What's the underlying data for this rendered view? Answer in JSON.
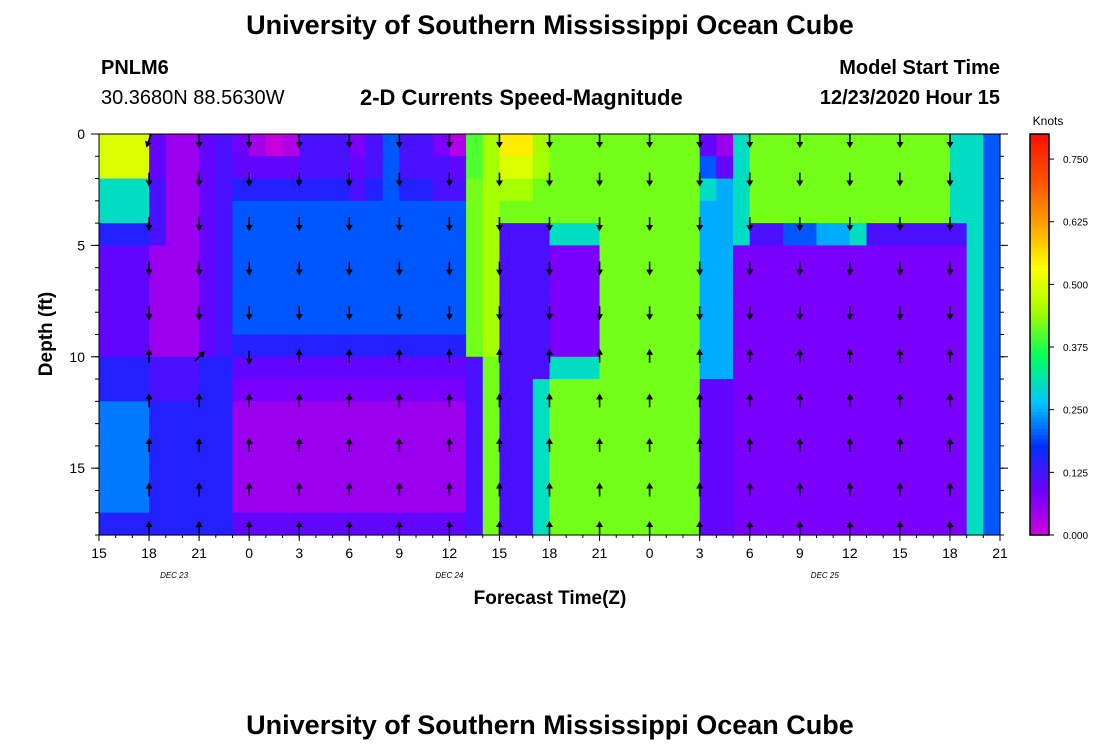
{
  "page": {
    "title_top": "University of Southern Mississippi Ocean Cube",
    "title_bottom": "University of Southern Mississippi Ocean Cube",
    "station_id": "PNLM6",
    "coordinates": "30.3680N 88.5630W",
    "model_start_label": "Model Start Time",
    "model_start_value": "12/23/2020 Hour 15"
  },
  "chart_data": {
    "type": "heatmap",
    "title": "2-D Currents Speed-Magnitude",
    "xlabel": "Forecast Time(Z)",
    "ylabel": "Depth (ft)",
    "x_tick_labels": [
      "15",
      "18",
      "21",
      "0",
      "3",
      "6",
      "9",
      "12",
      "15",
      "18",
      "21",
      "0",
      "3",
      "6",
      "9",
      "12",
      "15",
      "18",
      "21"
    ],
    "x_hours": [
      0,
      54
    ],
    "date_labels": [
      {
        "text": "DEC 23",
        "hour": 4.5
      },
      {
        "text": "DEC 24",
        "hour": 21
      },
      {
        "text": "DEC 25",
        "hour": 43.5
      }
    ],
    "y_ticks": [
      "0",
      "5",
      "10",
      "15"
    ],
    "ylim": [
      0,
      18
    ],
    "y_inverted": true,
    "colorbar": {
      "unit_label": "Knots",
      "range": [
        0,
        0.8
      ],
      "tick_labels": [
        "0.000",
        "0.125",
        "0.250",
        "0.375",
        "0.500",
        "0.625",
        "0.750"
      ],
      "colors": [
        "#d000d8",
        "#7000ff",
        "#0030ff",
        "#00c8ff",
        "#00ff60",
        "#a0ff00",
        "#ffff00",
        "#ffa000",
        "#ff5000",
        "#ff1000"
      ]
    },
    "column_hours": [
      0,
      1,
      2,
      3,
      4,
      5,
      6,
      7,
      8,
      9,
      10,
      11,
      12,
      13,
      14,
      15,
      16,
      17,
      18,
      19,
      20,
      21,
      22,
      23,
      24,
      25,
      26,
      27,
      28,
      29,
      30,
      31,
      32,
      33,
      34,
      35,
      36,
      37,
      38,
      39,
      40,
      41,
      42,
      43,
      44,
      45,
      46,
      47,
      48,
      49,
      50,
      51,
      52,
      53
    ],
    "row_depths_ft": [
      0,
      1,
      2,
      3,
      4,
      5,
      6,
      7,
      8,
      9,
      10,
      11,
      12,
      13,
      14,
      15,
      16,
      17
    ],
    "speed_knots": [
      [
        0.5,
        0.5,
        0.5,
        0.1,
        0.05,
        0.05,
        0.1,
        0.12,
        0.09,
        0.04,
        0.01,
        0.03,
        0.12,
        0.12,
        0.12,
        0.08,
        0.12,
        0.2,
        0.12,
        0.12,
        0.08,
        0.03,
        0.4,
        0.45,
        0.55,
        0.55,
        0.45,
        0.42,
        0.42,
        0.42,
        0.42,
        0.42,
        0.42,
        0.42,
        0.42,
        0.42,
        0.1,
        0.05,
        0.3,
        0.42,
        0.42,
        0.42,
        0.42,
        0.42,
        0.42,
        0.42,
        0.42,
        0.42,
        0.42,
        0.42,
        0.42,
        0.3,
        0.3,
        0.2
      ],
      [
        0.5,
        0.5,
        0.5,
        0.1,
        0.05,
        0.05,
        0.1,
        0.12,
        0.1,
        0.1,
        0.1,
        0.1,
        0.12,
        0.12,
        0.12,
        0.1,
        0.12,
        0.2,
        0.12,
        0.12,
        0.12,
        0.1,
        0.4,
        0.45,
        0.5,
        0.5,
        0.45,
        0.42,
        0.42,
        0.42,
        0.42,
        0.42,
        0.42,
        0.42,
        0.42,
        0.42,
        0.2,
        0.1,
        0.3,
        0.42,
        0.42,
        0.42,
        0.42,
        0.42,
        0.42,
        0.42,
        0.42,
        0.42,
        0.42,
        0.42,
        0.42,
        0.3,
        0.3,
        0.2
      ],
      [
        0.3,
        0.3,
        0.3,
        0.12,
        0.05,
        0.05,
        0.1,
        0.12,
        0.15,
        0.15,
        0.15,
        0.15,
        0.15,
        0.15,
        0.15,
        0.12,
        0.15,
        0.2,
        0.15,
        0.15,
        0.12,
        0.12,
        0.42,
        0.45,
        0.45,
        0.45,
        0.42,
        0.42,
        0.42,
        0.42,
        0.42,
        0.42,
        0.42,
        0.42,
        0.42,
        0.42,
        0.3,
        0.25,
        0.3,
        0.42,
        0.42,
        0.42,
        0.42,
        0.42,
        0.42,
        0.42,
        0.42,
        0.42,
        0.42,
        0.42,
        0.42,
        0.3,
        0.3,
        0.2
      ],
      [
        0.3,
        0.3,
        0.3,
        0.12,
        0.05,
        0.05,
        0.1,
        0.12,
        0.2,
        0.2,
        0.2,
        0.2,
        0.2,
        0.2,
        0.2,
        0.2,
        0.2,
        0.2,
        0.2,
        0.2,
        0.2,
        0.2,
        0.42,
        0.45,
        0.42,
        0.42,
        0.42,
        0.42,
        0.42,
        0.42,
        0.42,
        0.42,
        0.42,
        0.42,
        0.42,
        0.42,
        0.25,
        0.25,
        0.3,
        0.42,
        0.42,
        0.42,
        0.42,
        0.42,
        0.42,
        0.42,
        0.42,
        0.42,
        0.42,
        0.42,
        0.42,
        0.3,
        0.3,
        0.2
      ],
      [
        0.15,
        0.15,
        0.15,
        0.12,
        0.05,
        0.05,
        0.1,
        0.12,
        0.2,
        0.2,
        0.2,
        0.2,
        0.2,
        0.2,
        0.2,
        0.2,
        0.2,
        0.2,
        0.2,
        0.2,
        0.2,
        0.2,
        0.42,
        0.45,
        0.12,
        0.12,
        0.12,
        0.3,
        0.3,
        0.3,
        0.42,
        0.42,
        0.42,
        0.42,
        0.42,
        0.42,
        0.25,
        0.25,
        0.3,
        0.12,
        0.12,
        0.2,
        0.2,
        0.25,
        0.25,
        0.3,
        0.12,
        0.12,
        0.12,
        0.12,
        0.12,
        0.12,
        0.3,
        0.2
      ],
      [
        0.1,
        0.1,
        0.1,
        0.05,
        0.05,
        0.05,
        0.1,
        0.12,
        0.2,
        0.2,
        0.2,
        0.2,
        0.2,
        0.2,
        0.2,
        0.2,
        0.2,
        0.2,
        0.2,
        0.2,
        0.2,
        0.2,
        0.42,
        0.45,
        0.12,
        0.12,
        0.12,
        0.08,
        0.08,
        0.08,
        0.42,
        0.42,
        0.42,
        0.42,
        0.42,
        0.42,
        0.25,
        0.25,
        0.08,
        0.08,
        0.08,
        0.08,
        0.08,
        0.08,
        0.08,
        0.08,
        0.08,
        0.08,
        0.08,
        0.08,
        0.08,
        0.08,
        0.3,
        0.2
      ],
      [
        0.1,
        0.1,
        0.1,
        0.05,
        0.05,
        0.05,
        0.1,
        0.12,
        0.2,
        0.2,
        0.2,
        0.2,
        0.2,
        0.2,
        0.2,
        0.2,
        0.2,
        0.2,
        0.2,
        0.2,
        0.2,
        0.2,
        0.42,
        0.45,
        0.12,
        0.12,
        0.12,
        0.08,
        0.08,
        0.08,
        0.42,
        0.42,
        0.42,
        0.42,
        0.42,
        0.42,
        0.25,
        0.25,
        0.08,
        0.08,
        0.08,
        0.08,
        0.08,
        0.08,
        0.08,
        0.08,
        0.08,
        0.08,
        0.08,
        0.08,
        0.08,
        0.08,
        0.3,
        0.2
      ],
      [
        0.1,
        0.1,
        0.1,
        0.05,
        0.05,
        0.05,
        0.1,
        0.12,
        0.2,
        0.2,
        0.2,
        0.2,
        0.2,
        0.2,
        0.2,
        0.2,
        0.2,
        0.2,
        0.2,
        0.2,
        0.2,
        0.2,
        0.42,
        0.45,
        0.12,
        0.12,
        0.12,
        0.08,
        0.08,
        0.08,
        0.42,
        0.42,
        0.42,
        0.42,
        0.42,
        0.42,
        0.25,
        0.25,
        0.08,
        0.08,
        0.08,
        0.08,
        0.08,
        0.08,
        0.08,
        0.08,
        0.08,
        0.08,
        0.08,
        0.08,
        0.08,
        0.08,
        0.3,
        0.2
      ],
      [
        0.1,
        0.1,
        0.1,
        0.05,
        0.05,
        0.05,
        0.1,
        0.12,
        0.2,
        0.2,
        0.2,
        0.2,
        0.2,
        0.2,
        0.2,
        0.2,
        0.2,
        0.2,
        0.2,
        0.2,
        0.2,
        0.2,
        0.42,
        0.45,
        0.12,
        0.12,
        0.12,
        0.08,
        0.08,
        0.08,
        0.42,
        0.42,
        0.42,
        0.42,
        0.42,
        0.42,
        0.25,
        0.25,
        0.08,
        0.08,
        0.08,
        0.08,
        0.08,
        0.08,
        0.08,
        0.08,
        0.08,
        0.08,
        0.08,
        0.08,
        0.08,
        0.08,
        0.3,
        0.2
      ],
      [
        0.1,
        0.1,
        0.1,
        0.05,
        0.05,
        0.05,
        0.1,
        0.12,
        0.15,
        0.15,
        0.15,
        0.15,
        0.15,
        0.15,
        0.15,
        0.15,
        0.15,
        0.15,
        0.15,
        0.15,
        0.15,
        0.15,
        0.42,
        0.45,
        0.12,
        0.12,
        0.12,
        0.08,
        0.08,
        0.08,
        0.42,
        0.42,
        0.42,
        0.42,
        0.42,
        0.42,
        0.25,
        0.25,
        0.08,
        0.08,
        0.08,
        0.08,
        0.08,
        0.08,
        0.08,
        0.08,
        0.08,
        0.08,
        0.08,
        0.08,
        0.08,
        0.08,
        0.3,
        0.2
      ],
      [
        0.15,
        0.15,
        0.15,
        0.12,
        0.12,
        0.12,
        0.15,
        0.15,
        0.1,
        0.1,
        0.1,
        0.1,
        0.1,
        0.1,
        0.1,
        0.1,
        0.1,
        0.1,
        0.1,
        0.1,
        0.1,
        0.1,
        0.12,
        0.42,
        0.12,
        0.12,
        0.12,
        0.3,
        0.3,
        0.3,
        0.42,
        0.42,
        0.42,
        0.42,
        0.42,
        0.42,
        0.25,
        0.25,
        0.08,
        0.08,
        0.08,
        0.08,
        0.08,
        0.08,
        0.08,
        0.08,
        0.08,
        0.08,
        0.08,
        0.08,
        0.08,
        0.08,
        0.3,
        0.2
      ],
      [
        0.15,
        0.15,
        0.15,
        0.12,
        0.12,
        0.12,
        0.15,
        0.15,
        0.08,
        0.08,
        0.08,
        0.08,
        0.08,
        0.08,
        0.08,
        0.08,
        0.08,
        0.08,
        0.08,
        0.08,
        0.08,
        0.08,
        0.12,
        0.42,
        0.12,
        0.12,
        0.3,
        0.42,
        0.42,
        0.42,
        0.42,
        0.42,
        0.42,
        0.42,
        0.42,
        0.42,
        0.1,
        0.1,
        0.08,
        0.08,
        0.08,
        0.08,
        0.08,
        0.08,
        0.08,
        0.08,
        0.08,
        0.08,
        0.08,
        0.08,
        0.08,
        0.08,
        0.3,
        0.2
      ],
      [
        0.22,
        0.22,
        0.22,
        0.15,
        0.15,
        0.15,
        0.15,
        0.15,
        0.05,
        0.05,
        0.05,
        0.05,
        0.05,
        0.05,
        0.05,
        0.05,
        0.05,
        0.05,
        0.05,
        0.05,
        0.05,
        0.05,
        0.12,
        0.42,
        0.12,
        0.12,
        0.3,
        0.42,
        0.42,
        0.42,
        0.42,
        0.42,
        0.42,
        0.42,
        0.42,
        0.42,
        0.1,
        0.1,
        0.08,
        0.08,
        0.08,
        0.08,
        0.08,
        0.08,
        0.08,
        0.08,
        0.08,
        0.08,
        0.08,
        0.08,
        0.08,
        0.08,
        0.3,
        0.2
      ],
      [
        0.22,
        0.22,
        0.22,
        0.15,
        0.15,
        0.15,
        0.15,
        0.15,
        0.05,
        0.05,
        0.05,
        0.05,
        0.05,
        0.05,
        0.05,
        0.05,
        0.05,
        0.05,
        0.05,
        0.05,
        0.05,
        0.05,
        0.12,
        0.42,
        0.12,
        0.12,
        0.3,
        0.42,
        0.42,
        0.42,
        0.42,
        0.42,
        0.42,
        0.42,
        0.42,
        0.42,
        0.1,
        0.1,
        0.08,
        0.08,
        0.08,
        0.08,
        0.08,
        0.08,
        0.08,
        0.08,
        0.08,
        0.08,
        0.08,
        0.08,
        0.08,
        0.08,
        0.3,
        0.2
      ],
      [
        0.22,
        0.22,
        0.22,
        0.15,
        0.15,
        0.15,
        0.15,
        0.15,
        0.05,
        0.05,
        0.05,
        0.05,
        0.05,
        0.05,
        0.05,
        0.05,
        0.05,
        0.05,
        0.05,
        0.05,
        0.05,
        0.05,
        0.12,
        0.42,
        0.12,
        0.12,
        0.3,
        0.42,
        0.42,
        0.42,
        0.42,
        0.42,
        0.42,
        0.42,
        0.42,
        0.42,
        0.1,
        0.1,
        0.08,
        0.08,
        0.08,
        0.08,
        0.08,
        0.08,
        0.08,
        0.08,
        0.08,
        0.08,
        0.08,
        0.08,
        0.08,
        0.08,
        0.3,
        0.2
      ],
      [
        0.22,
        0.22,
        0.22,
        0.15,
        0.15,
        0.15,
        0.15,
        0.15,
        0.05,
        0.05,
        0.05,
        0.05,
        0.05,
        0.05,
        0.05,
        0.05,
        0.05,
        0.05,
        0.05,
        0.05,
        0.05,
        0.05,
        0.12,
        0.42,
        0.12,
        0.12,
        0.3,
        0.42,
        0.42,
        0.42,
        0.42,
        0.42,
        0.42,
        0.42,
        0.42,
        0.42,
        0.1,
        0.1,
        0.08,
        0.08,
        0.08,
        0.08,
        0.08,
        0.08,
        0.08,
        0.08,
        0.08,
        0.08,
        0.08,
        0.08,
        0.08,
        0.08,
        0.3,
        0.2
      ],
      [
        0.22,
        0.22,
        0.22,
        0.15,
        0.15,
        0.15,
        0.15,
        0.15,
        0.05,
        0.05,
        0.05,
        0.05,
        0.05,
        0.05,
        0.05,
        0.05,
        0.05,
        0.05,
        0.05,
        0.05,
        0.05,
        0.05,
        0.12,
        0.42,
        0.12,
        0.12,
        0.3,
        0.42,
        0.42,
        0.42,
        0.42,
        0.42,
        0.42,
        0.42,
        0.42,
        0.42,
        0.1,
        0.1,
        0.08,
        0.08,
        0.08,
        0.08,
        0.08,
        0.08,
        0.08,
        0.08,
        0.08,
        0.08,
        0.08,
        0.08,
        0.08,
        0.08,
        0.3,
        0.2
      ],
      [
        0.15,
        0.15,
        0.15,
        0.15,
        0.15,
        0.15,
        0.15,
        0.15,
        0.1,
        0.1,
        0.1,
        0.1,
        0.1,
        0.1,
        0.1,
        0.1,
        0.1,
        0.1,
        0.1,
        0.1,
        0.1,
        0.1,
        0.12,
        0.42,
        0.12,
        0.12,
        0.3,
        0.42,
        0.42,
        0.42,
        0.42,
        0.42,
        0.42,
        0.42,
        0.42,
        0.42,
        0.1,
        0.1,
        0.08,
        0.08,
        0.08,
        0.08,
        0.08,
        0.08,
        0.08,
        0.08,
        0.08,
        0.08,
        0.08,
        0.08,
        0.08,
        0.08,
        0.3,
        0.2
      ]
    ],
    "vector_hours": [
      3,
      6,
      9,
      12,
      15,
      18,
      21,
      24,
      27,
      30,
      33,
      36,
      39,
      42,
      45,
      48,
      51
    ],
    "vector_depths_ft": [
      0,
      2,
      4,
      6,
      8,
      10,
      12,
      14,
      16,
      18
    ],
    "direction_deg": [
      [
        200,
        180,
        180,
        180,
        180,
        180,
        180,
        180,
        180,
        180,
        180,
        180,
        180,
        180,
        180,
        180,
        180
      ],
      [
        180,
        180,
        180,
        180,
        180,
        180,
        180,
        180,
        180,
        180,
        180,
        180,
        180,
        180,
        180,
        180,
        180
      ],
      [
        180,
        180,
        180,
        180,
        180,
        180,
        180,
        180,
        180,
        180,
        180,
        180,
        180,
        180,
        180,
        180,
        180
      ],
      [
        180,
        180,
        180,
        180,
        180,
        180,
        180,
        180,
        180,
        180,
        180,
        180,
        180,
        180,
        180,
        180,
        180
      ],
      [
        180,
        180,
        180,
        180,
        180,
        180,
        180,
        180,
        180,
        180,
        180,
        180,
        180,
        180,
        180,
        180,
        180
      ],
      [
        0,
        45,
        180,
        0,
        0,
        0,
        0,
        0,
        0,
        0,
        0,
        0,
        0,
        0,
        0,
        0,
        0
      ],
      [
        0,
        0,
        0,
        0,
        0,
        0,
        0,
        0,
        0,
        0,
        0,
        0,
        0,
        0,
        0,
        0,
        0
      ],
      [
        0,
        0,
        0,
        0,
        0,
        0,
        0,
        0,
        0,
        0,
        0,
        0,
        0,
        0,
        0,
        0,
        0
      ],
      [
        0,
        0,
        0,
        0,
        0,
        0,
        0,
        0,
        0,
        0,
        0,
        0,
        0,
        0,
        0,
        0,
        0
      ],
      [
        0,
        0,
        0,
        0,
        0,
        0,
        0,
        0,
        0,
        0,
        0,
        0,
        0,
        0,
        0,
        0,
        0
      ]
    ]
  }
}
